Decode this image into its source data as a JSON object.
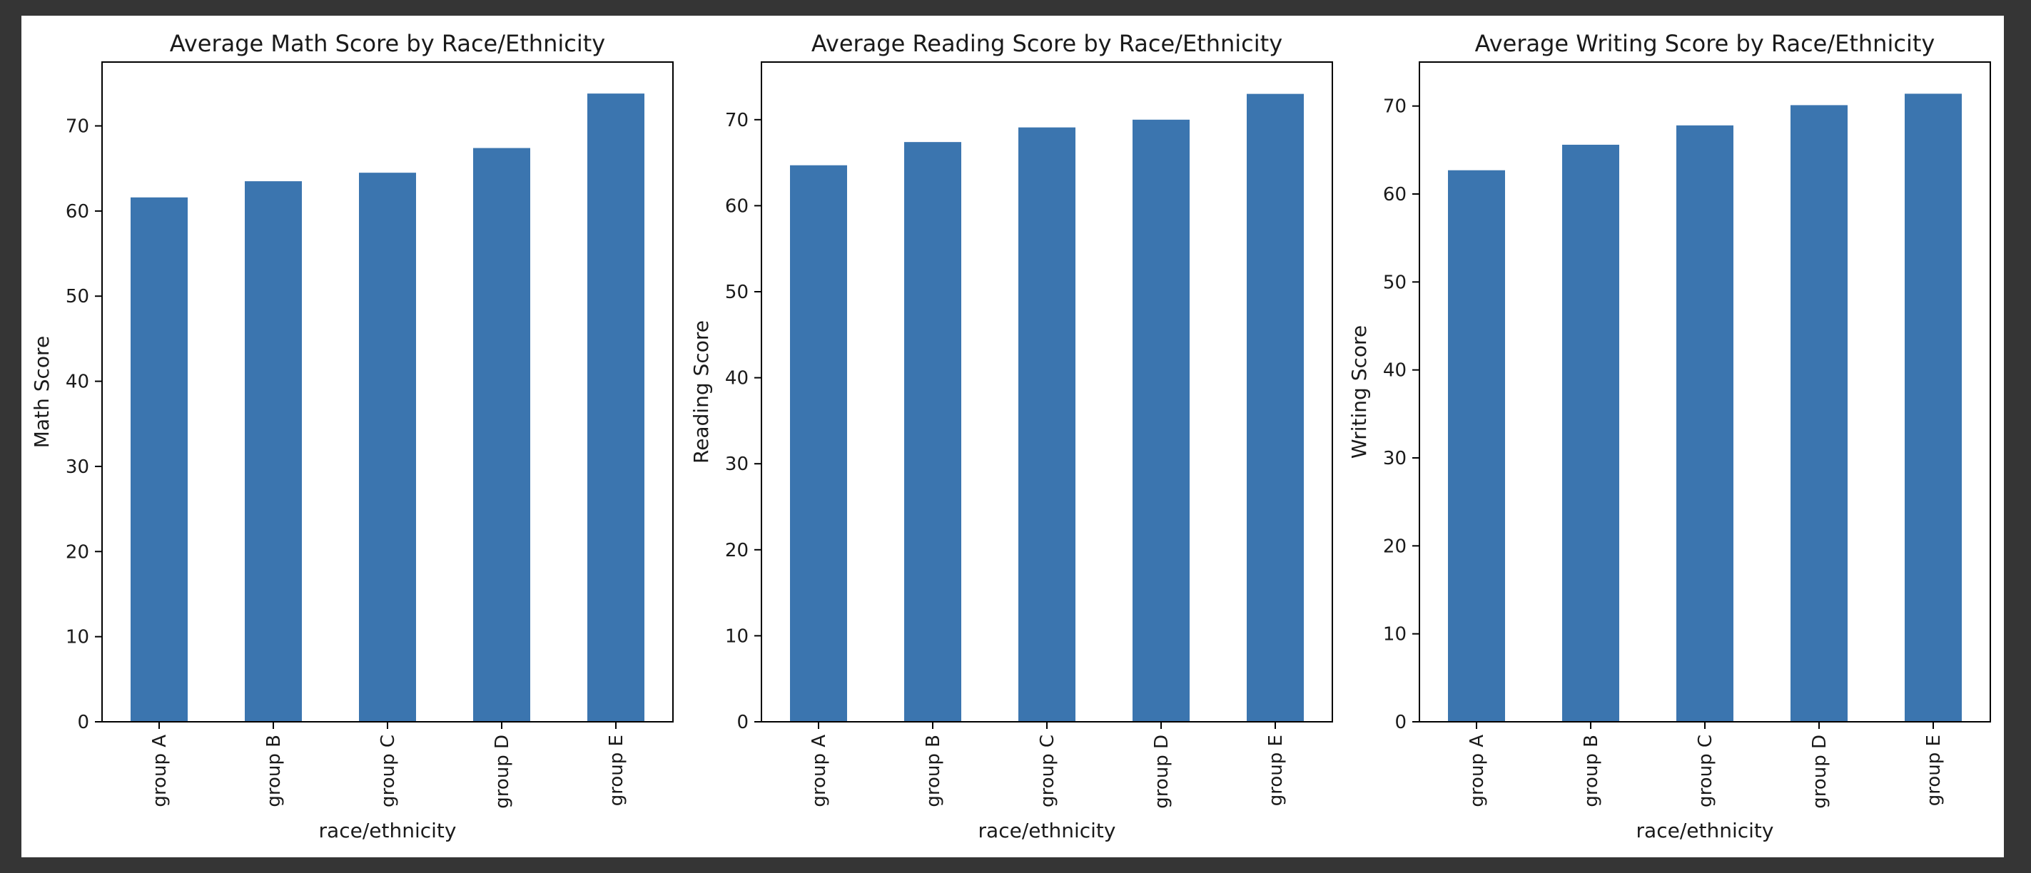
{
  "figure": {
    "background_color": "#ffffff",
    "frame_color": "#353535"
  },
  "chart_data": [
    {
      "type": "bar",
      "title": "Average Math Score by Race/Ethnicity",
      "xlabel": "race/ethnicity",
      "ylabel": "Math Score",
      "categories": [
        "group A",
        "group B",
        "group C",
        "group D",
        "group E"
      ],
      "values": [
        61.6,
        63.5,
        64.5,
        67.4,
        73.8
      ],
      "ylim": [
        0,
        77.5
      ],
      "yticks": [
        0,
        10,
        20,
        30,
        40,
        50,
        60,
        70
      ],
      "bar_color": "#3b75af",
      "grid": false,
      "legend": "none"
    },
    {
      "type": "bar",
      "title": "Average Reading Score by Race/Ethnicity",
      "xlabel": "race/ethnicity",
      "ylabel": "Reading Score",
      "categories": [
        "group A",
        "group B",
        "group C",
        "group D",
        "group E"
      ],
      "values": [
        64.7,
        67.4,
        69.1,
        70.0,
        73.0
      ],
      "ylim": [
        0,
        76.7
      ],
      "yticks": [
        0,
        10,
        20,
        30,
        40,
        50,
        60,
        70
      ],
      "bar_color": "#3b75af",
      "grid": false,
      "legend": "none"
    },
    {
      "type": "bar",
      "title": "Average Writing Score by Race/Ethnicity",
      "xlabel": "race/ethnicity",
      "ylabel": "Writing Score",
      "categories": [
        "group A",
        "group B",
        "group C",
        "group D",
        "group E"
      ],
      "values": [
        62.7,
        65.6,
        67.8,
        70.1,
        71.4
      ],
      "ylim": [
        0,
        75.0
      ],
      "yticks": [
        0,
        10,
        20,
        30,
        40,
        50,
        60,
        70
      ],
      "bar_color": "#3b75af",
      "grid": false,
      "legend": "none"
    }
  ]
}
